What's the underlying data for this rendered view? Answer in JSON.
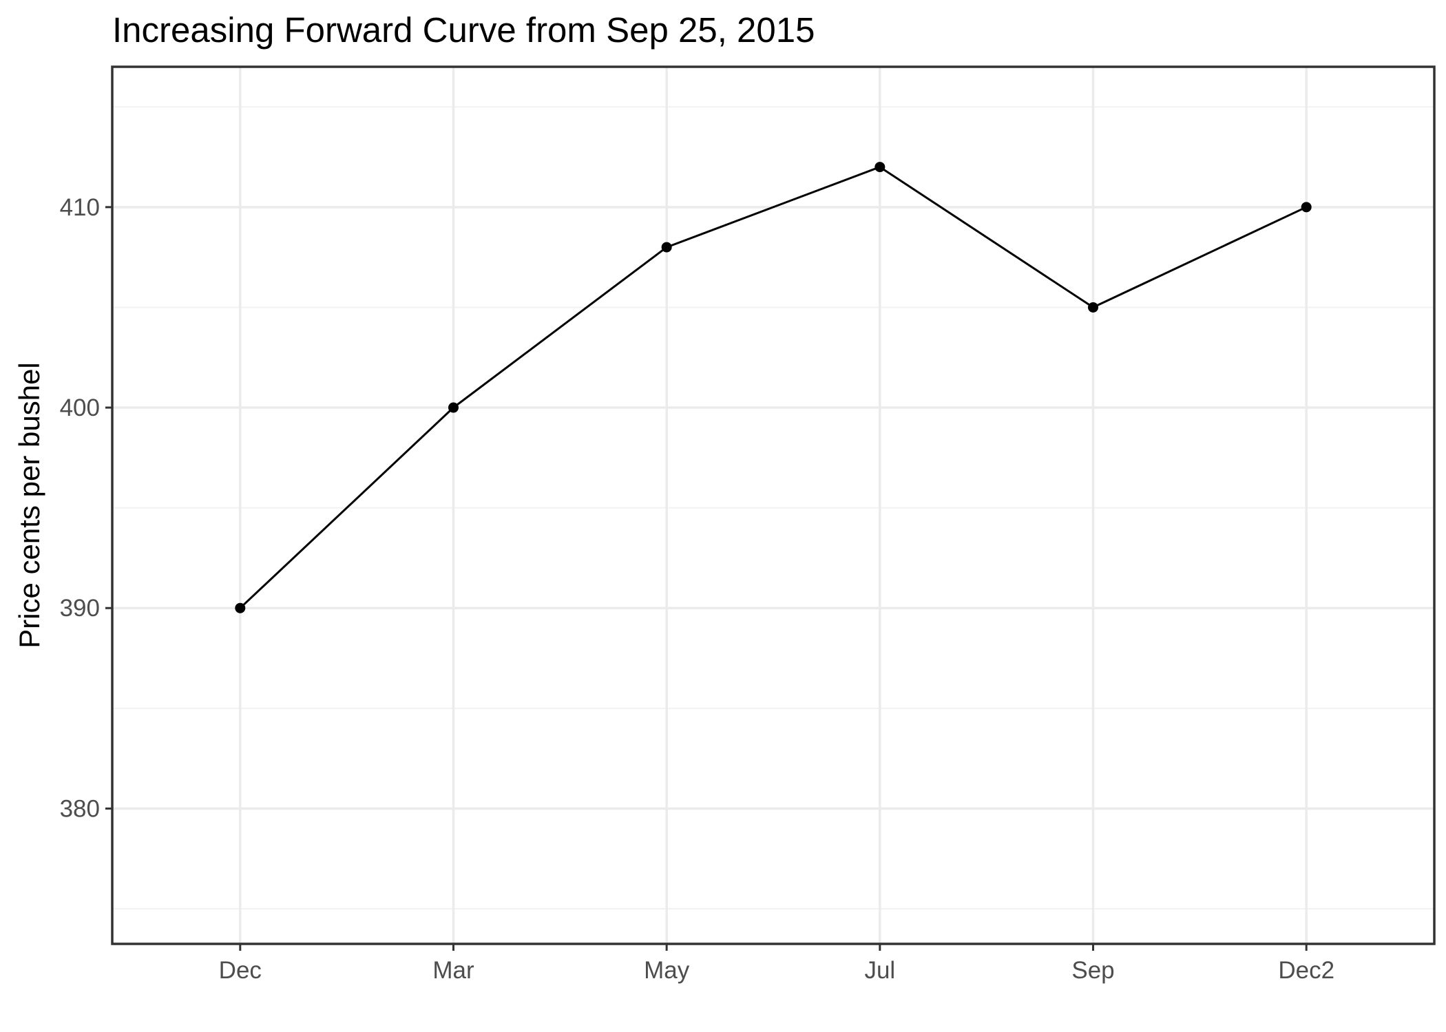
{
  "chart_data": {
    "type": "line",
    "title": "Increasing Forward Curve from Sep 25, 2015",
    "xlabel": "",
    "ylabel": "Price cents per bushel",
    "categories": [
      "Dec",
      "Mar",
      "May",
      "Jul",
      "Sep",
      "Dec2"
    ],
    "series": [
      {
        "values": [
          390,
          400,
          408,
          412,
          405,
          410
        ]
      }
    ],
    "ylim": [
      373.25,
      417.0
    ],
    "yticks": [
      380,
      390,
      400,
      410
    ],
    "grid": true,
    "legend": "none",
    "colors": {
      "line": "#000000",
      "point": "#000000",
      "panel_border": "#333333",
      "grid_major": "#ebebeb",
      "grid_minor": "#f2f2f2",
      "tick_label": "#4d4d4d"
    }
  }
}
